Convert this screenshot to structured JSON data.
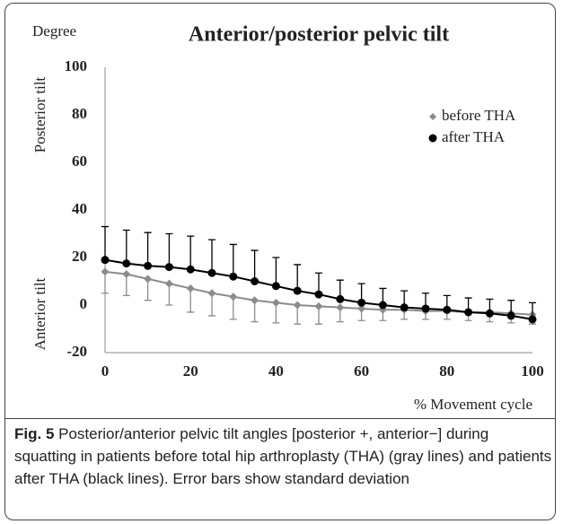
{
  "chart_data": {
    "type": "line",
    "title": "Anterior/posterior pelvic tilt",
    "y_unit_label": "Degree",
    "y_upper_label": "Posterior tilt",
    "y_lower_label": "Anterior tilt",
    "x_label": "% Movement cycle",
    "x": [
      0,
      5,
      10,
      15,
      20,
      25,
      30,
      35,
      40,
      45,
      50,
      55,
      60,
      65,
      70,
      75,
      80,
      85,
      90,
      95,
      100
    ],
    "series": [
      {
        "name": "before THA",
        "color": "#8c8c8c",
        "marker": "diamond",
        "error_side": "down",
        "values": [
          14,
          13,
          11,
          9,
          7,
          5,
          3.5,
          2,
          1,
          0,
          -0.5,
          -1,
          -1.5,
          -2,
          -2,
          -2.5,
          -2.5,
          -3,
          -3,
          -3.5,
          -4
        ],
        "errors": [
          9,
          9,
          9,
          9,
          10,
          9.5,
          9.5,
          9,
          8.5,
          8,
          7.5,
          6,
          5,
          4.5,
          4,
          3.5,
          3.5,
          3.5,
          4,
          4,
          4
        ]
      },
      {
        "name": "after THA",
        "color": "#000000",
        "marker": "circle",
        "error_side": "up",
        "values": [
          19,
          17.5,
          16.5,
          16,
          15,
          13.5,
          12,
          10,
          8,
          6,
          4.5,
          2.5,
          1,
          0,
          -1,
          -1.5,
          -2,
          -3,
          -3.5,
          -4.5,
          -6
        ],
        "errors": [
          14,
          14,
          14,
          14,
          14,
          14,
          13.5,
          13,
          12,
          11,
          9,
          8,
          8,
          7,
          7,
          6.5,
          6,
          6,
          6,
          6.5,
          7
        ]
      }
    ],
    "xlim": [
      0,
      100
    ],
    "xticks": [
      0,
      20,
      40,
      60,
      80,
      100
    ],
    "ylim": [
      -20,
      100
    ],
    "yticks": [
      -20,
      0,
      20,
      40,
      60,
      80,
      100
    ],
    "grid": false,
    "legend": "upper right"
  },
  "caption": {
    "label": "Fig. 5",
    "text": "Posterior/anterior pelvic tilt angles [posterior +, anterior−] during squatting in patients before total hip arthroplasty (THA) (gray lines) and patients after THA (black lines). Error bars show standard deviation"
  }
}
